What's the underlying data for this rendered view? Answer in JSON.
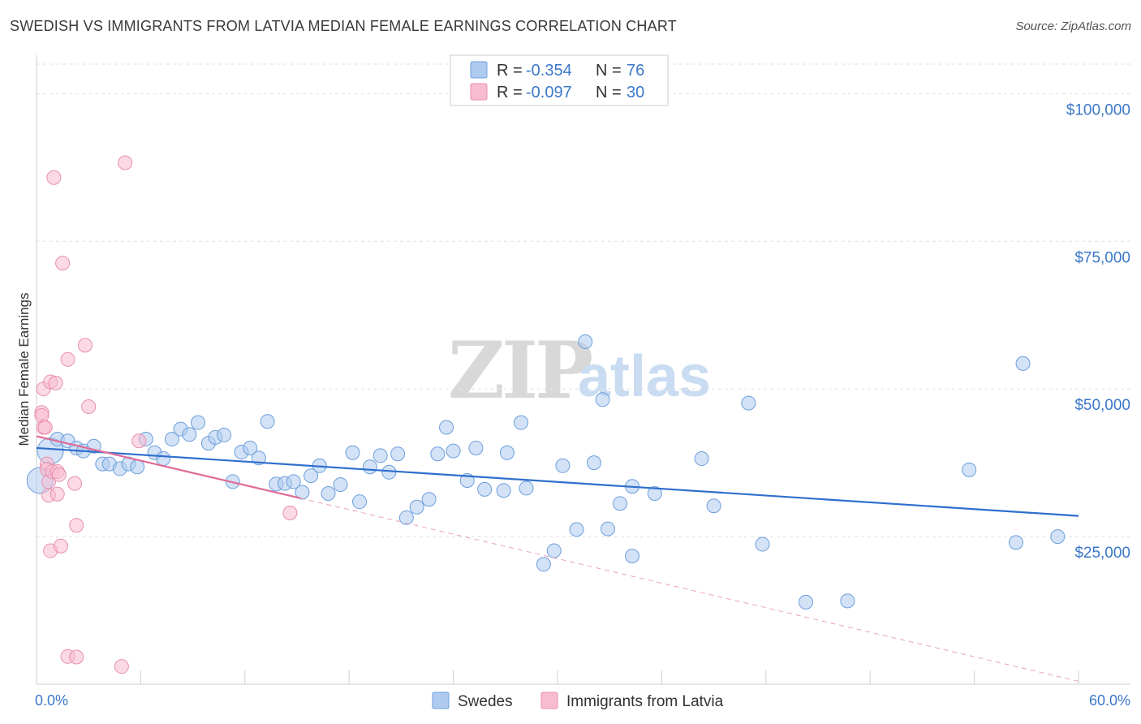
{
  "header": {
    "title": "SWEDISH VS IMMIGRANTS FROM LATVIA MEDIAN FEMALE EARNINGS CORRELATION CHART",
    "source": "Source: ZipAtlas.com"
  },
  "watermark": {
    "zip": "ZIP",
    "atlas": "atlas"
  },
  "legend": {
    "rows": [
      {
        "r_label": "R =",
        "r_value": "-0.354",
        "n_label": "N =",
        "n_value": "76",
        "color": "#aecbef"
      },
      {
        "r_label": "R =",
        "r_value": "-0.097",
        "n_label": "N =",
        "n_value": "30",
        "color": "#f7bcd0"
      }
    ]
  },
  "bottom_legend": [
    {
      "label": "Swedes",
      "color": "#aecbef"
    },
    {
      "label": "Immigrants from Latvia",
      "color": "#f7bcd0"
    }
  ],
  "chart_data": {
    "type": "scatter",
    "title": "SWEDISH VS IMMIGRANTS FROM LATVIA MEDIAN FEMALE EARNINGS CORRELATION CHART",
    "xlabel": "",
    "ylabel": "Median Female Earnings",
    "xlim": [
      0,
      60
    ],
    "ylim": [
      0,
      105000
    ],
    "x_tick_labels": [
      "0.0%",
      "60.0%"
    ],
    "y_ticks": [
      25000,
      50000,
      75000,
      100000
    ],
    "y_tick_labels": [
      "$25,000",
      "$50,000",
      "$75,000",
      "$100,000"
    ],
    "grid": true,
    "legend_position": "top-center",
    "series": [
      {
        "name": "Swedes",
        "color": "#aecbef",
        "stroke": "#6d9fdc",
        "trend": {
          "x0": 0,
          "y0": 40000,
          "x1": 60,
          "y1": 28500,
          "color": "#2f6fcd"
        },
        "points": [
          [
            0.8,
            39500
          ],
          [
            1.2,
            41500
          ],
          [
            1.8,
            41200
          ],
          [
            2.3,
            40000
          ],
          [
            2.7,
            39500
          ],
          [
            3.3,
            40300
          ],
          [
            3.8,
            37300
          ],
          [
            4.2,
            37300
          ],
          [
            4.8,
            36500
          ],
          [
            5.3,
            37300
          ],
          [
            5.8,
            36800
          ],
          [
            6.3,
            41500
          ],
          [
            6.8,
            39200
          ],
          [
            7.3,
            38200
          ],
          [
            7.8,
            41500
          ],
          [
            8.3,
            43200
          ],
          [
            8.8,
            42300
          ],
          [
            9.3,
            44300
          ],
          [
            9.9,
            40800
          ],
          [
            10.3,
            41800
          ],
          [
            10.8,
            42200
          ],
          [
            11.3,
            34300
          ],
          [
            11.8,
            39300
          ],
          [
            12.3,
            40000
          ],
          [
            12.8,
            38300
          ],
          [
            13.3,
            44500
          ],
          [
            13.8,
            33900
          ],
          [
            14.3,
            34000
          ],
          [
            14.8,
            34300
          ],
          [
            15.3,
            32500
          ],
          [
            15.8,
            35300
          ],
          [
            16.3,
            37000
          ],
          [
            16.8,
            32300
          ],
          [
            17.5,
            33800
          ],
          [
            18.2,
            39200
          ],
          [
            18.6,
            30900
          ],
          [
            19.2,
            36800
          ],
          [
            19.8,
            38700
          ],
          [
            20.3,
            35900
          ],
          [
            20.8,
            39000
          ],
          [
            21.3,
            28200
          ],
          [
            21.9,
            30000
          ],
          [
            22.6,
            31300
          ],
          [
            23.1,
            39000
          ],
          [
            23.6,
            43500
          ],
          [
            24.0,
            39500
          ],
          [
            24.8,
            34500
          ],
          [
            25.3,
            40000
          ],
          [
            25.8,
            33000
          ],
          [
            26.9,
            32800
          ],
          [
            27.1,
            39200
          ],
          [
            27.9,
            44300
          ],
          [
            28.2,
            33200
          ],
          [
            29.2,
            20300
          ],
          [
            29.8,
            22600
          ],
          [
            30.3,
            37000
          ],
          [
            31.1,
            26200
          ],
          [
            31.6,
            58000
          ],
          [
            32.1,
            37500
          ],
          [
            32.6,
            48200
          ],
          [
            32.9,
            26300
          ],
          [
            33.6,
            30600
          ],
          [
            34.3,
            21700
          ],
          [
            34.3,
            33500
          ],
          [
            35.6,
            32300
          ],
          [
            38.3,
            38200
          ],
          [
            39.0,
            30200
          ],
          [
            41.0,
            47600
          ],
          [
            41.8,
            23700
          ],
          [
            44.3,
            13900
          ],
          [
            46.7,
            14100
          ],
          [
            53.7,
            36300
          ],
          [
            56.4,
            24000
          ],
          [
            56.8,
            54300
          ],
          [
            58.8,
            25000
          ],
          [
            0.2,
            34500
          ]
        ]
      },
      {
        "name": "Immigrants from Latvia",
        "color": "#f7bcd0",
        "stroke": "#e98fae",
        "trend": {
          "x0": 0,
          "y0": 42000,
          "x1": 15.2,
          "y1": 31500,
          "color": "#e06b98"
        },
        "trend_dashed": {
          "x0": 15.2,
          "y0": 31500,
          "x1": 60,
          "y1": 500,
          "color": "#e8a3bd"
        },
        "points": [
          [
            0.3,
            46000
          ],
          [
            0.3,
            45500
          ],
          [
            0.4,
            50000
          ],
          [
            0.4,
            43500
          ],
          [
            0.5,
            43500
          ],
          [
            0.6,
            37300
          ],
          [
            0.6,
            36400
          ],
          [
            0.7,
            34300
          ],
          [
            0.7,
            32000
          ],
          [
            0.8,
            22600
          ],
          [
            0.8,
            51200
          ],
          [
            0.9,
            36000
          ],
          [
            1.0,
            85800
          ],
          [
            1.1,
            51000
          ],
          [
            1.2,
            36000
          ],
          [
            1.2,
            32200
          ],
          [
            1.3,
            35500
          ],
          [
            1.4,
            23400
          ],
          [
            1.5,
            71300
          ],
          [
            1.8,
            55000
          ],
          [
            1.8,
            4700
          ],
          [
            2.2,
            34000
          ],
          [
            2.3,
            26900
          ],
          [
            2.3,
            4600
          ],
          [
            2.8,
            57400
          ],
          [
            3.0,
            47000
          ],
          [
            4.9,
            3000
          ],
          [
            5.1,
            88300
          ],
          [
            5.9,
            41200
          ],
          [
            14.6,
            29000
          ]
        ]
      }
    ]
  }
}
